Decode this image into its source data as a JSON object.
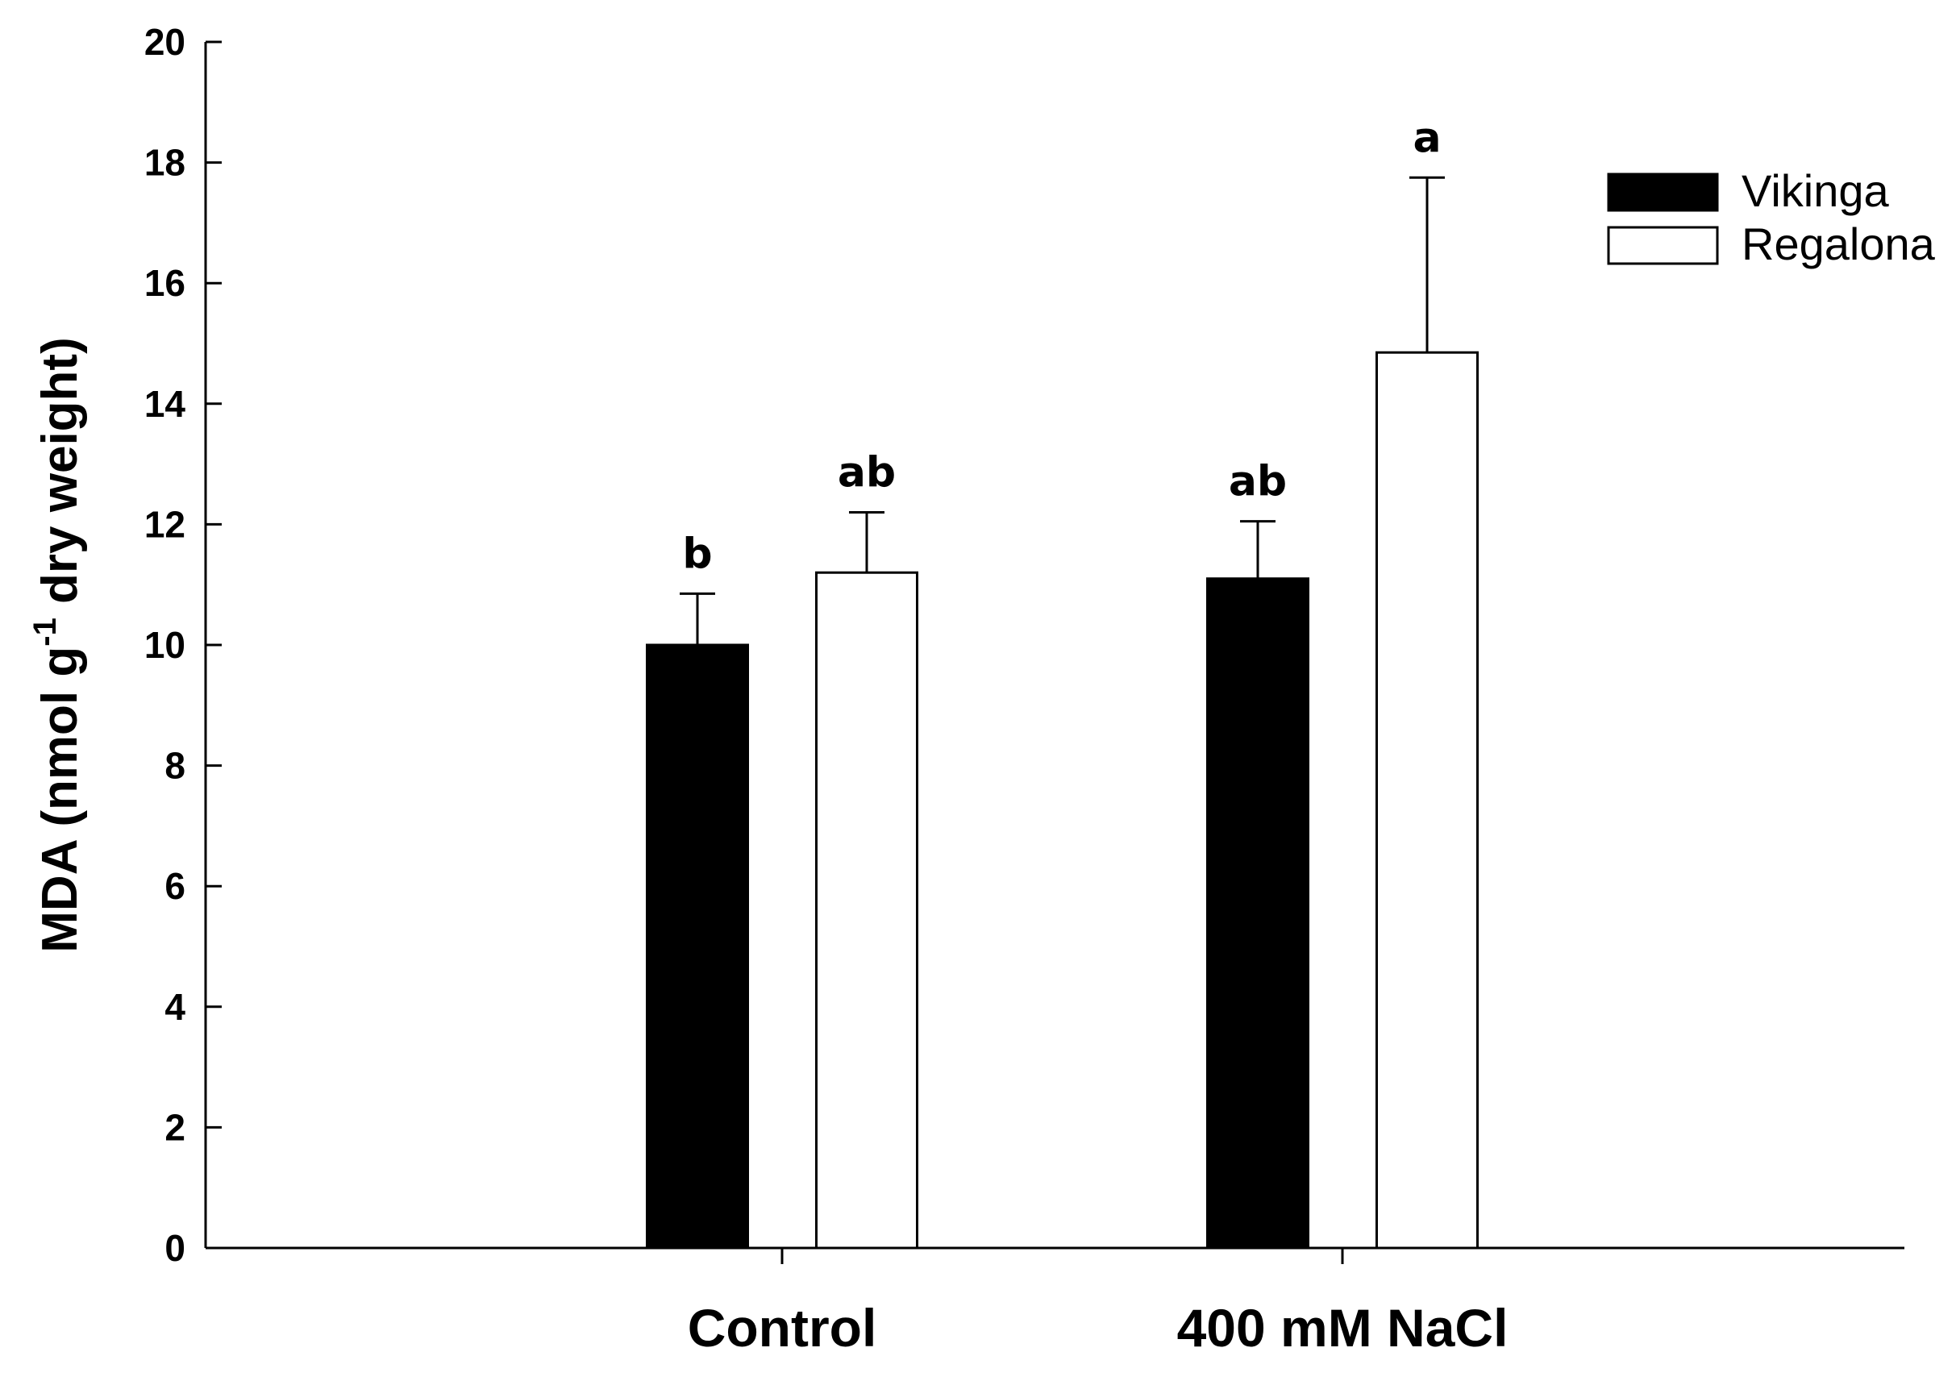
{
  "chart_data": {
    "type": "bar",
    "title": "",
    "xlabel": "",
    "ylabel": "MDA (nmol g-1 dry weight)",
    "ylabel_parts": {
      "main": "MDA (nmol g",
      "superscript": "-1",
      "tail": " dry weight)"
    },
    "ylim": [
      0,
      20
    ],
    "yticks": [
      "0",
      "2",
      "4",
      "6",
      "8",
      "10",
      "12",
      "14",
      "16",
      "18",
      "20"
    ],
    "categories": [
      "Control",
      "400 mM NaCl"
    ],
    "series": [
      {
        "name": "Vikinga",
        "color": "#000000",
        "values": [
          10.0,
          11.1
        ],
        "errors": [
          0.85,
          0.95
        ],
        "letters": [
          "b",
          "ab"
        ]
      },
      {
        "name": "Regalona",
        "color": "#ffffff",
        "values": [
          11.2,
          14.85
        ],
        "errors": [
          1.0,
          2.9
        ],
        "letters": [
          "ab",
          "a"
        ]
      }
    ],
    "legend_position": "top-right",
    "grid": false
  }
}
